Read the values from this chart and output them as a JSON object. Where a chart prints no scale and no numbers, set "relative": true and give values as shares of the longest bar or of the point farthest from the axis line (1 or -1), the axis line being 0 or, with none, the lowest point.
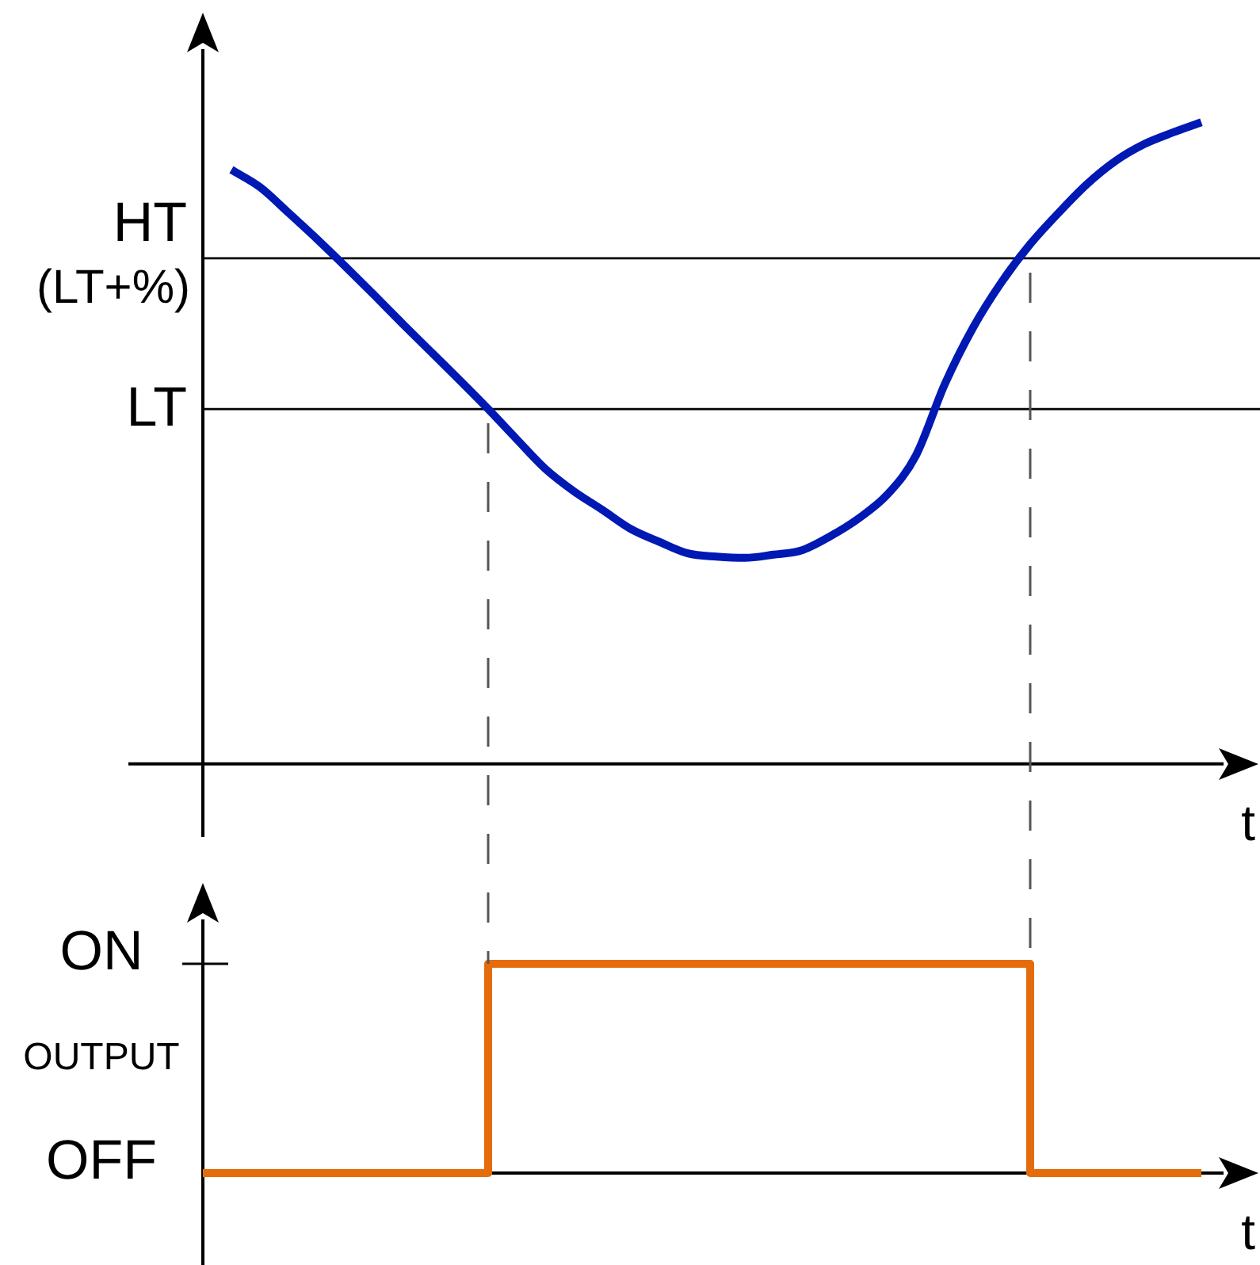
{
  "chart_data": [
    {
      "type": "line",
      "relative": true,
      "xlabel": "t",
      "categories": [
        null,
        null,
        null,
        null,
        null,
        null,
        null,
        null,
        null,
        null,
        null,
        null,
        null,
        null,
        null,
        null,
        null,
        null,
        null,
        null,
        null,
        null,
        null,
        null,
        null,
        null,
        null,
        null,
        null,
        null,
        null,
        null,
        null,
        null,
        null,
        null,
        null,
        null
      ],
      "series": [
        {
          "color": "#0019b3",
          "values": [
            null,
            0.926,
            0.899,
            0.859,
            0.818,
            0.775,
            0.731,
            0.686,
            0.642,
            0.598,
            0.553,
            0.506,
            0.46,
            0.425,
            0.396,
            0.366,
            0.346,
            0.328,
            0.323,
            0.321,
            0.326,
            0.333,
            0.355,
            0.383,
            0.42,
            0.481,
            0.591,
            0.68,
            0.751,
            0.81,
            0.859,
            0.904,
            0.94,
            0.966,
            0.984,
            1,
            null,
            null
          ]
        }
      ],
      "ref_lines": [
        {
          "axis": "y",
          "value": 0.788,
          "label": "HT (LT+%)",
          "color": "#000000"
        },
        {
          "axis": "y",
          "value": 0.553,
          "label": "LT",
          "color": "#000000"
        }
      ]
    },
    {
      "type": "step",
      "relative": true,
      "xlabel": "t",
      "ylabel": "OUTPUT",
      "categories": [
        null,
        null,
        null,
        null,
        null,
        null,
        null,
        null,
        null,
        null,
        null,
        null,
        null,
        null,
        null,
        null,
        null,
        null,
        null,
        null,
        null,
        null,
        null,
        null,
        null,
        null,
        null,
        null,
        null,
        null,
        null,
        null,
        null,
        null,
        null,
        null,
        null,
        null
      ],
      "series": [
        {
          "color": "#e46c0a",
          "values": [
            0,
            0,
            0,
            0,
            0,
            0,
            0,
            0,
            0,
            0,
            1,
            1,
            1,
            1,
            1,
            1,
            1,
            1,
            1,
            1,
            1,
            1,
            1,
            1,
            1,
            1,
            1,
            1,
            1,
            0,
            0,
            0,
            0,
            0,
            0,
            0,
            null,
            null
          ]
        }
      ],
      "annotations": [
        "ON",
        "OFF"
      ]
    }
  ]
}
